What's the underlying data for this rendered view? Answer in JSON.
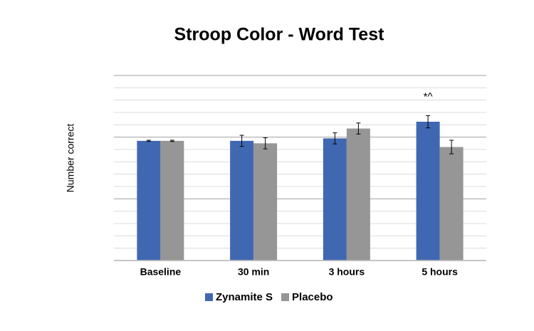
{
  "chart_data": {
    "type": "bar",
    "title": "Stroop Color - Word Test",
    "y_label": "Number correct",
    "categories": [
      "Baseline",
      "30 min",
      "3 hours",
      "5 hours"
    ],
    "series": [
      {
        "name": "Zynamite S",
        "color": "#4068b2",
        "values": [
          9.7,
          9.7,
          9.9,
          11.25
        ],
        "errors": [
          0.05,
          0.45,
          0.45,
          0.5
        ]
      },
      {
        "name": "Placebo",
        "color": "#969696",
        "values": [
          9.7,
          9.5,
          10.7,
          9.2
        ],
        "errors": [
          0.05,
          0.45,
          0.45,
          0.55
        ]
      }
    ],
    "annotations": [
      {
        "text": "*^",
        "category": 3,
        "y": 13.25
      }
    ],
    "ylim": [
      0,
      15
    ],
    "yticks": [
      0,
      5,
      10,
      15
    ],
    "minor_yticks": [
      1,
      2,
      3,
      4,
      6,
      7,
      8,
      9,
      11,
      12,
      13,
      14
    ],
    "grid": true,
    "legend": "bottom"
  }
}
